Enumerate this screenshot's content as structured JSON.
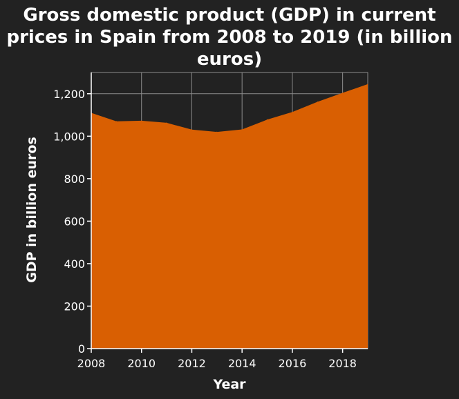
{
  "chart_data": {
    "type": "area",
    "title_lines": [
      "Gross domestic product (GDP) in current",
      "prices in Spain from 2008 to 2019 (in billion",
      "euros)"
    ],
    "xlabel": "Year",
    "ylabel": "GDP in billion euros",
    "x": [
      2008,
      2009,
      2010,
      2011,
      2012,
      2013,
      2014,
      2015,
      2016,
      2017,
      2018,
      2019
    ],
    "series": [
      {
        "values": [
          1110,
          1070,
          1073,
          1063,
          1031,
          1020,
          1032,
          1078,
          1114,
          1162,
          1204,
          1245
        ]
      }
    ],
    "xlim": [
      2008,
      2019
    ],
    "ylim": [
      0,
      1300
    ],
    "x_ticks": [
      2008,
      2010,
      2012,
      2014,
      2016,
      2018
    ],
    "x_tick_labels": [
      "2008",
      "2010",
      "2012",
      "2014",
      "2016",
      "2018"
    ],
    "y_ticks": [
      0,
      200,
      400,
      600,
      800,
      1000,
      1200
    ],
    "y_tick_labels": [
      "0",
      "200",
      "400",
      "600",
      "800",
      "1,000",
      "1,200"
    ],
    "grid": true,
    "colors": {
      "background": "#222222",
      "fill": "#d95f02",
      "grid": "#8c8c8c",
      "text": "#ffffff"
    }
  }
}
